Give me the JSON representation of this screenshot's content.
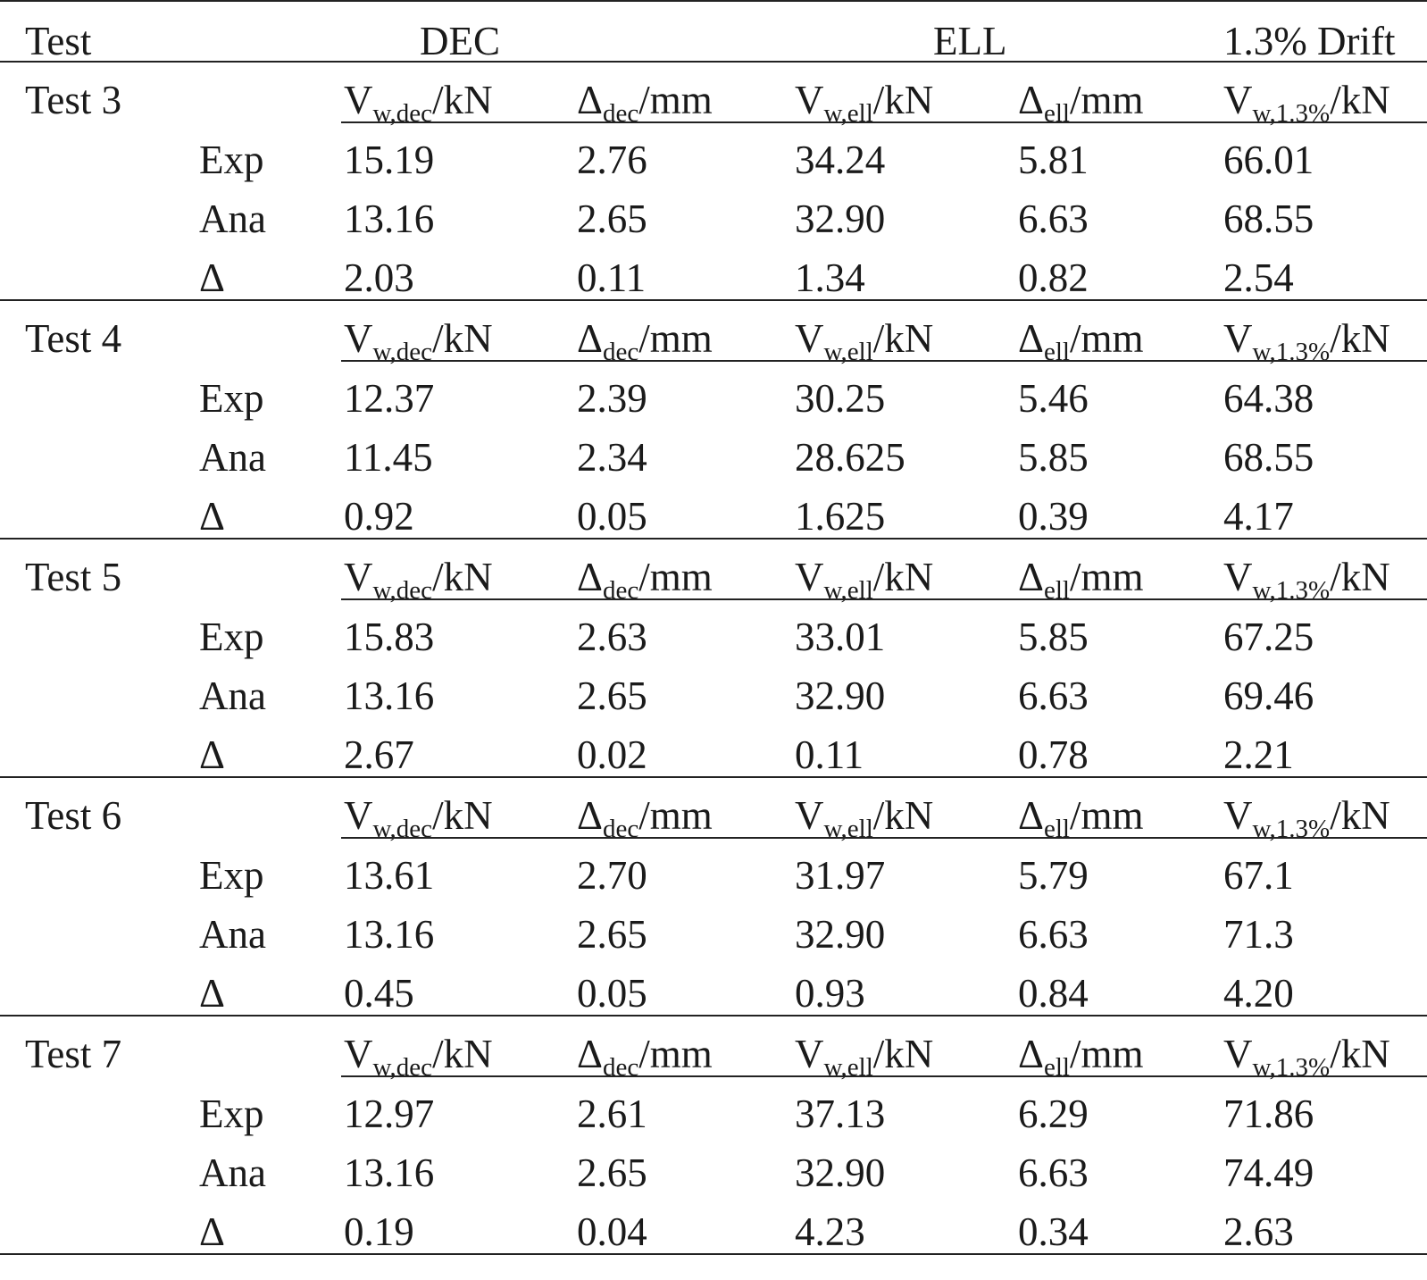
{
  "header": {
    "test_label": "Test",
    "dec_label": "DEC",
    "ell_label": "ELL",
    "drift_label": "1.3% Drift"
  },
  "columns": [
    {
      "main": "V",
      "sub": "w,dec",
      "unit": "/kN"
    },
    {
      "main": "Δ",
      "sub": "dec",
      "unit": "/mm"
    },
    {
      "main": "V",
      "sub": "w,ell",
      "unit": "/kN"
    },
    {
      "main": "Δ",
      "sub": "ell",
      "unit": "/mm"
    },
    {
      "main": "V",
      "sub": "w,1.3%",
      "unit": "/kN"
    }
  ],
  "row_labels": [
    "Exp",
    "Ana",
    "Δ"
  ],
  "tests": [
    {
      "name": "Test 3",
      "rows": [
        [
          "15.19",
          "2.76",
          "34.24",
          "5.81",
          "66.01"
        ],
        [
          "13.16",
          "2.65",
          "32.90",
          "6.63",
          "68.55"
        ],
        [
          "2.03",
          "0.11",
          "1.34",
          "0.82",
          "2.54"
        ]
      ]
    },
    {
      "name": "Test 4",
      "rows": [
        [
          "12.37",
          "2.39",
          "30.25",
          "5.46",
          "64.38"
        ],
        [
          "11.45",
          "2.34",
          "28.625",
          "5.85",
          "68.55"
        ],
        [
          "0.92",
          "0.05",
          "1.625",
          "0.39",
          "4.17"
        ]
      ]
    },
    {
      "name": "Test 5",
      "rows": [
        [
          "15.83",
          "2.63",
          "33.01",
          "5.85",
          "67.25"
        ],
        [
          "13.16",
          "2.65",
          "32.90",
          "6.63",
          "69.46"
        ],
        [
          "2.67",
          "0.02",
          "0.11",
          "0.78",
          "2.21"
        ]
      ]
    },
    {
      "name": "Test 6",
      "rows": [
        [
          "13.61",
          "2.70",
          "31.97",
          "5.79",
          "67.1"
        ],
        [
          "13.16",
          "2.65",
          "32.90",
          "6.63",
          "71.3"
        ],
        [
          "0.45",
          "0.05",
          "0.93",
          "0.84",
          "4.20"
        ]
      ]
    },
    {
      "name": "Test 7",
      "rows": [
        [
          "12.97",
          "2.61",
          "37.13",
          "6.29",
          "71.86"
        ],
        [
          "13.16",
          "2.65",
          "32.90",
          "6.63",
          "74.49"
        ],
        [
          "0.19",
          "0.04",
          "4.23",
          "0.34",
          "2.63"
        ]
      ]
    }
  ]
}
